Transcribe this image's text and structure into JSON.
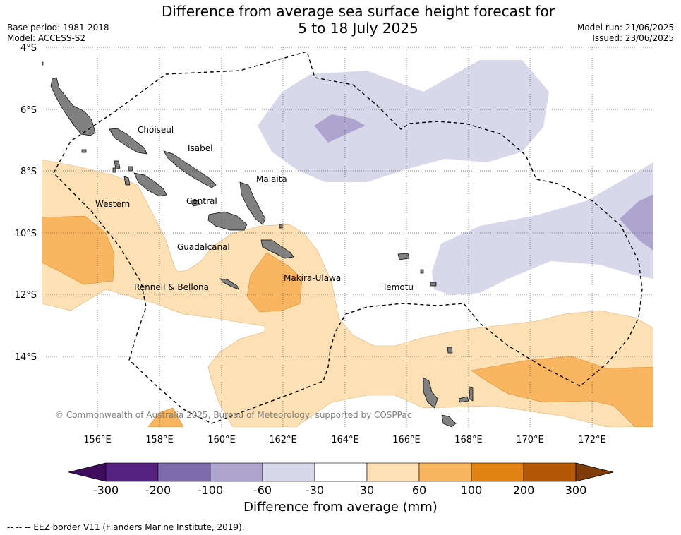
{
  "title_line1": "Difference from average sea surface height forecast for",
  "title_line2": "5 to 18 July 2025",
  "meta_left": [
    "Base period: 1981-2018",
    "Model: ACCESS-S2"
  ],
  "meta_right": [
    "Model run: 21/06/2025",
    "Issued: 23/06/2025"
  ],
  "lat_labels": [
    "4°S",
    "6°S",
    "8°S",
    "10°S",
    "12°S",
    "14°S"
  ],
  "lon_labels": [
    "156°E",
    "158°E",
    "160°E",
    "162°E",
    "164°E",
    "166°E",
    "168°E",
    "170°E",
    "172°E"
  ],
  "regions": [
    "Choiseul",
    "Isabel",
    "Malaita",
    "Western",
    "Central",
    "Guadalcanal",
    "Makira-Ulawa",
    "Rennell & Bellona",
    "Temotu"
  ],
  "copyright": "© Commonwealth of Australia 2025, Bureau of Meteorology, supported by COSPPac",
  "colorbar": {
    "title": "Difference from average (mm)",
    "ticks": [
      "-300",
      "-200",
      "-100",
      "-60",
      "-30",
      "30",
      "60",
      "100",
      "200",
      "300"
    ],
    "colors": [
      "#3f0c5e",
      "#54237f",
      "#7e6bab",
      "#ada4d0",
      "#d8d8ea",
      "#ffffff",
      "#fde0b4",
      "#f9b560",
      "#e08214",
      "#b35806",
      "#7f3b08"
    ]
  },
  "footer": "-- -- -- EEZ border V11 (Flanders Marine Institute, 2019)."
}
